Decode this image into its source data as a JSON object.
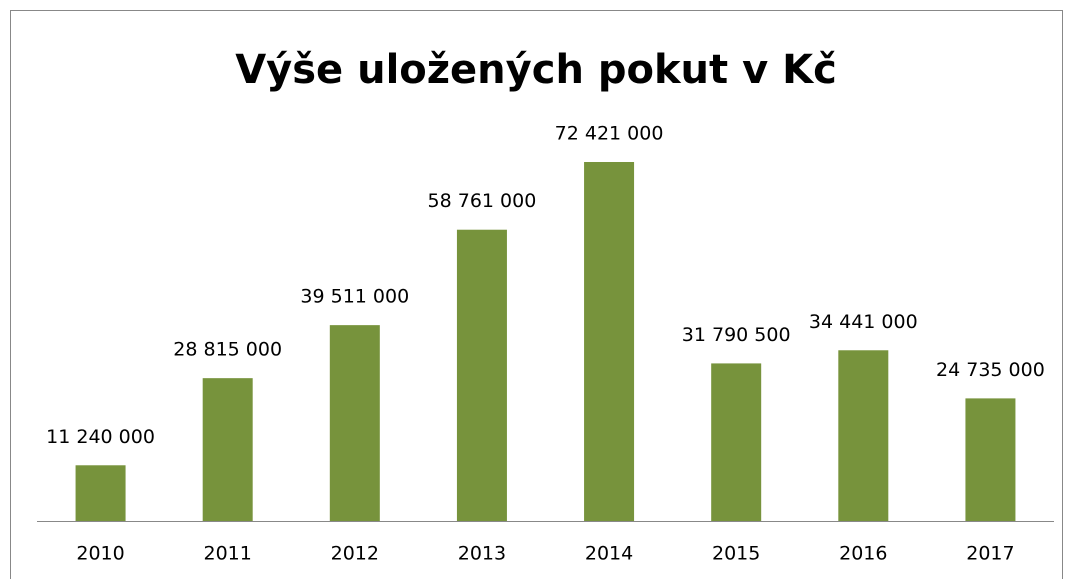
{
  "chart_data": {
    "type": "bar",
    "title": "Výše uložených pokut v Kč",
    "categories": [
      "2010",
      "2011",
      "2012",
      "2013",
      "2014",
      "2015",
      "2016",
      "2017"
    ],
    "values": [
      11240000,
      28815000,
      39511000,
      58761000,
      72421000,
      31790500,
      34441000,
      24735000
    ],
    "value_labels": [
      "11 240 000",
      "28 815 000",
      "39 511 000",
      "58 761 000",
      "72 421 000",
      "31 790 500",
      "34 441 000",
      "24 735 000"
    ],
    "color": "#77933c"
  }
}
